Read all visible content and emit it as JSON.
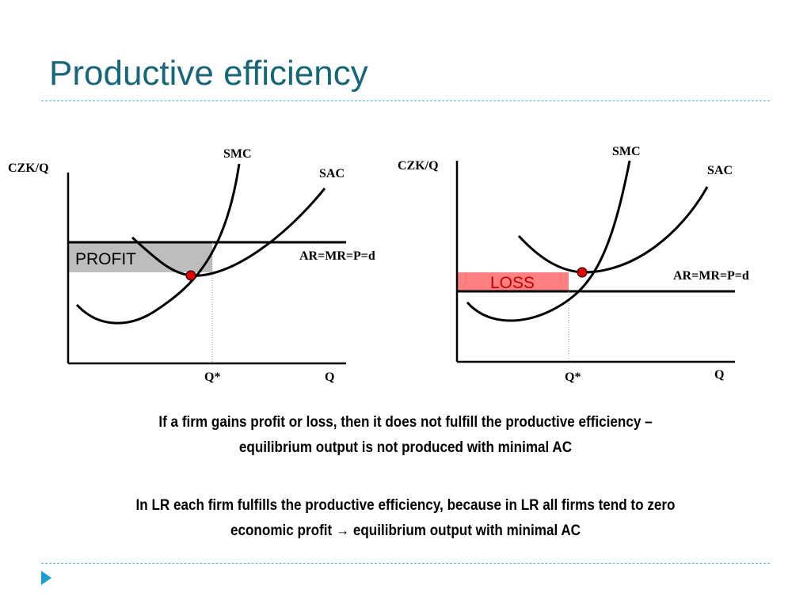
{
  "slide": {
    "title": "Productive efficiency",
    "colors": {
      "title": "#17667a",
      "rule": "#4fb3cf",
      "bullet": "#1a9fd0"
    }
  },
  "diagrams": [
    {
      "y_axis_label": "CZK/Q",
      "x_axis_label": "Q",
      "q_star_label": "Q*",
      "smc_label": "SMC",
      "sac_label": "SAC",
      "price_line_label": "AR=MR=P=d",
      "area_label": "PROFIT",
      "area_color": "#bdbdbd",
      "area_label_color": "#000000"
    },
    {
      "y_axis_label": "CZK/Q",
      "x_axis_label": "Q",
      "q_star_label": "Q*",
      "smc_label": "SMC",
      "sac_label": "SAC",
      "price_line_label": "AR=MR=P=d",
      "area_label": "LOSS",
      "area_color": "#ff8080",
      "area_label_color": "#c00000"
    }
  ],
  "text": {
    "paragraph1": "If a firm gains profit or loss, then it does not fulfill the productive efficiency – equilibrium output is not produced with minimal AC",
    "paragraph2": "In LR each firm fulfills the productive efficiency, because in LR all firms tend to zero economic profit → equilibrium output with minimal AC"
  }
}
